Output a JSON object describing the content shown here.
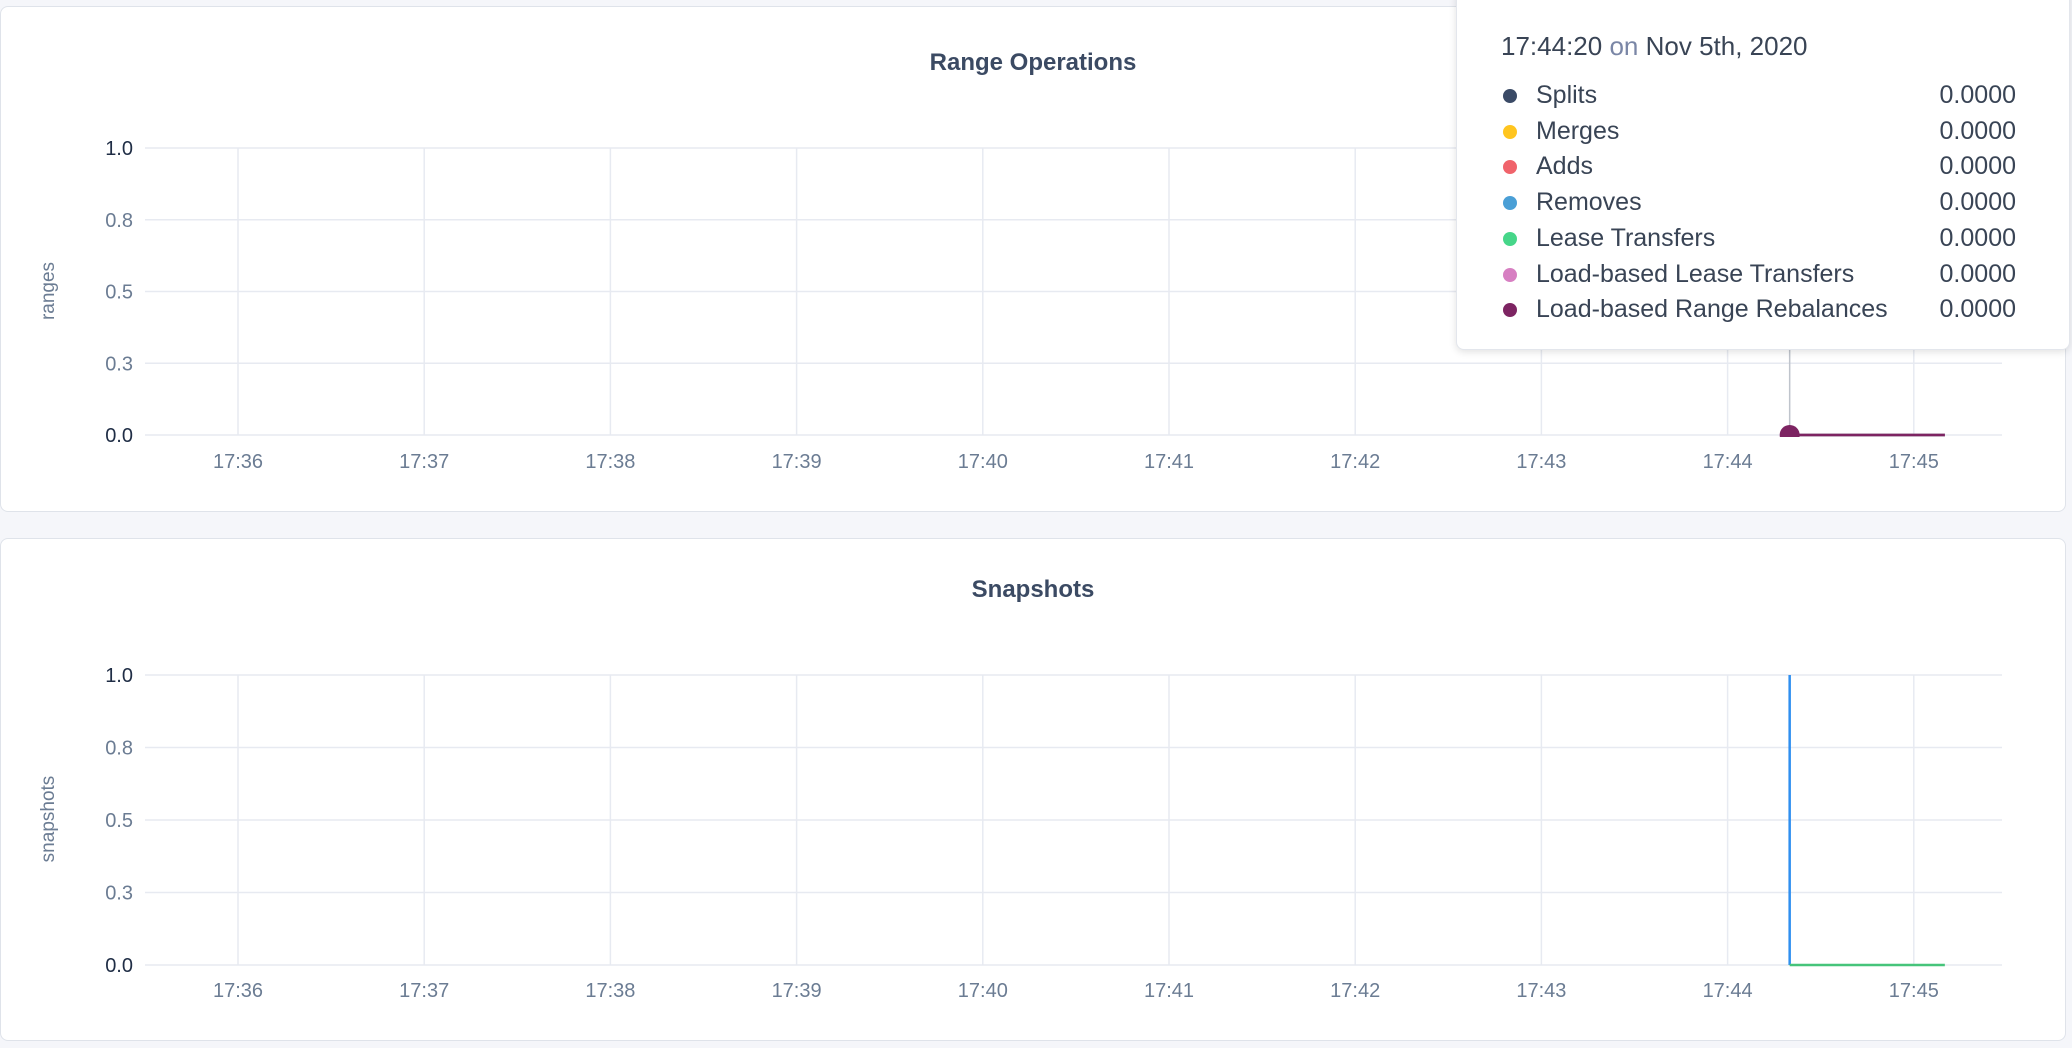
{
  "chart_data": [
    {
      "type": "line",
      "title": "Range Operations",
      "ylabel": "ranges",
      "xlabel": "",
      "ylim": [
        0,
        1.0
      ],
      "yticks": [
        0,
        0.25,
        0.5,
        0.75,
        1.0
      ],
      "ytick_labels": [
        "0.0",
        "0.3",
        "0.5",
        "0.8",
        "1.0"
      ],
      "xticks": [
        "17:36",
        "17:37",
        "17:38",
        "17:39",
        "17:40",
        "17:41",
        "17:42",
        "17:43",
        "17:44",
        "17:45"
      ],
      "xlim": [
        "17:35:38",
        "17:45:50"
      ],
      "grid": true,
      "series": [
        {
          "name": "Splits",
          "color": "#3a4a66",
          "x": [
            "17:44:20",
            "17:45:10"
          ],
          "y": [
            0,
            0
          ]
        },
        {
          "name": "Merges",
          "color": "#ffc51f",
          "x": [
            "17:44:20",
            "17:45:10"
          ],
          "y": [
            0,
            0
          ]
        },
        {
          "name": "Adds",
          "color": "#f0636b",
          "x": [
            "17:44:20",
            "17:45:10"
          ],
          "y": [
            0,
            0
          ]
        },
        {
          "name": "Removes",
          "color": "#4a9fd6",
          "x": [
            "17:44:20",
            "17:45:10"
          ],
          "y": [
            0,
            0
          ]
        },
        {
          "name": "Lease Transfers",
          "color": "#46d689",
          "x": [
            "17:44:20",
            "17:45:10"
          ],
          "y": [
            0,
            0
          ]
        },
        {
          "name": "Load-based Lease Transfers",
          "color": "#d77fc2",
          "x": [
            "17:44:20",
            "17:45:10"
          ],
          "y": [
            0,
            0
          ]
        },
        {
          "name": "Load-based Range Rebalances",
          "color": "#7d2462",
          "x": [
            "17:44:20",
            "17:45:10"
          ],
          "y": [
            0,
            0
          ]
        }
      ],
      "hover": {
        "time": "17:44:20",
        "on": "on",
        "date": "Nov 5th, 2020",
        "values": [
          "0.0000",
          "0.0000",
          "0.0000",
          "0.0000",
          "0.0000",
          "0.0000",
          "0.0000"
        ]
      }
    },
    {
      "type": "line",
      "title": "Snapshots",
      "ylabel": "snapshots",
      "xlabel": "",
      "ylim": [
        0,
        1.0
      ],
      "yticks": [
        0,
        0.25,
        0.5,
        0.75,
        1.0
      ],
      "ytick_labels": [
        "0.0",
        "0.3",
        "0.5",
        "0.8",
        "1.0"
      ],
      "xticks": [
        "17:36",
        "17:37",
        "17:38",
        "17:39",
        "17:40",
        "17:41",
        "17:42",
        "17:43",
        "17:44",
        "17:45"
      ],
      "xlim": [
        "17:35:38",
        "17:45:50"
      ],
      "grid": true,
      "series": [
        {
          "color": "#2f8ff0",
          "x": [
            "17:44:20",
            "17:44:20"
          ],
          "y": [
            1.0,
            0
          ]
        },
        {
          "color": "#46c47a",
          "x": [
            "17:44:20",
            "17:45:10"
          ],
          "y": [
            0,
            0
          ]
        }
      ]
    }
  ]
}
